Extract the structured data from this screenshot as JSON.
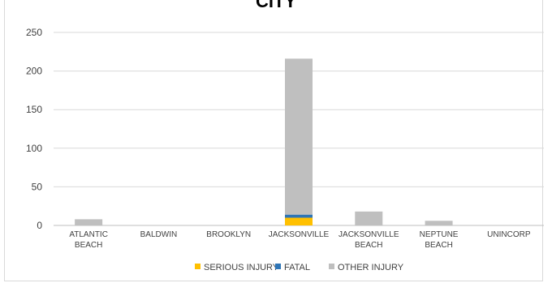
{
  "chart_data": {
    "type": "bar",
    "stacked": true,
    "title": "CITY",
    "categories": [
      [
        "ATLANTIC",
        "BEACH"
      ],
      [
        "BALDWIN"
      ],
      [
        "BROOKLYN"
      ],
      [
        "JACKSONVILLE"
      ],
      [
        "JACKSONVILLE",
        "BEACH"
      ],
      [
        "NEPTUNE",
        "BEACH"
      ],
      [
        "UNINCORP"
      ]
    ],
    "series": [
      {
        "name": "SERIOUS INJURY",
        "color": "#FFC000",
        "values": [
          0,
          0,
          0,
          10,
          0,
          0,
          0
        ]
      },
      {
        "name": "FATAL",
        "color": "#2E75B6",
        "values": [
          0,
          0,
          0,
          4,
          0,
          0,
          0
        ]
      },
      {
        "name": "OTHER INJURY",
        "color": "#BFBFBF",
        "values": [
          8,
          0,
          0,
          202,
          18,
          6,
          0
        ]
      }
    ],
    "ylim": [
      0,
      250
    ],
    "yticks": [
      0,
      50,
      100,
      150,
      200,
      250
    ],
    "grid": true,
    "legend": "bottom"
  }
}
